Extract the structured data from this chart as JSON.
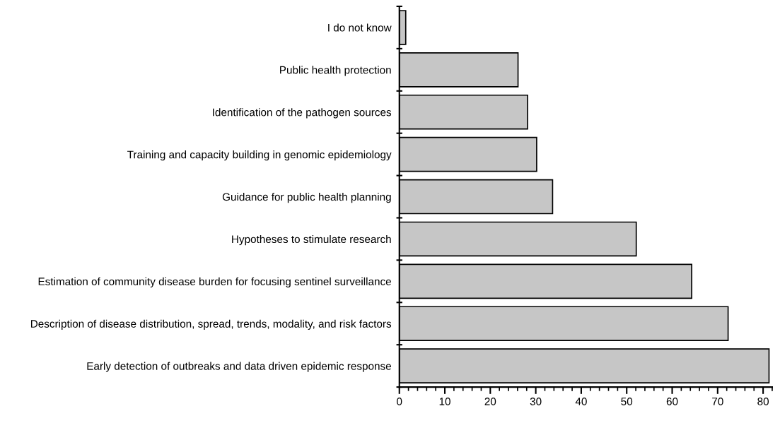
{
  "chart_data": {
    "type": "bar",
    "orientation": "horizontal",
    "categories": [
      "I do not know",
      "Public health protection",
      "Identification of the pathogen sources",
      "Training and capacity building in genomic epidemiology",
      "Guidance for public health planning",
      "Hypotheses to stimulate research",
      "Estimation of community disease burden for focusing sentinel surveillance",
      "Description of disease distribution, spread, trends, modality, and risk factors",
      "Early detection of outbreaks and data driven epidemic response"
    ],
    "values": [
      1.4,
      26.1,
      28.2,
      30.2,
      33.7,
      52.1,
      64.3,
      72.3,
      81.3
    ],
    "color": "#c6c6c6",
    "xlim": [
      0,
      82
    ],
    "xticks": [
      0,
      10,
      20,
      30,
      40,
      50,
      60,
      70,
      80
    ]
  }
}
